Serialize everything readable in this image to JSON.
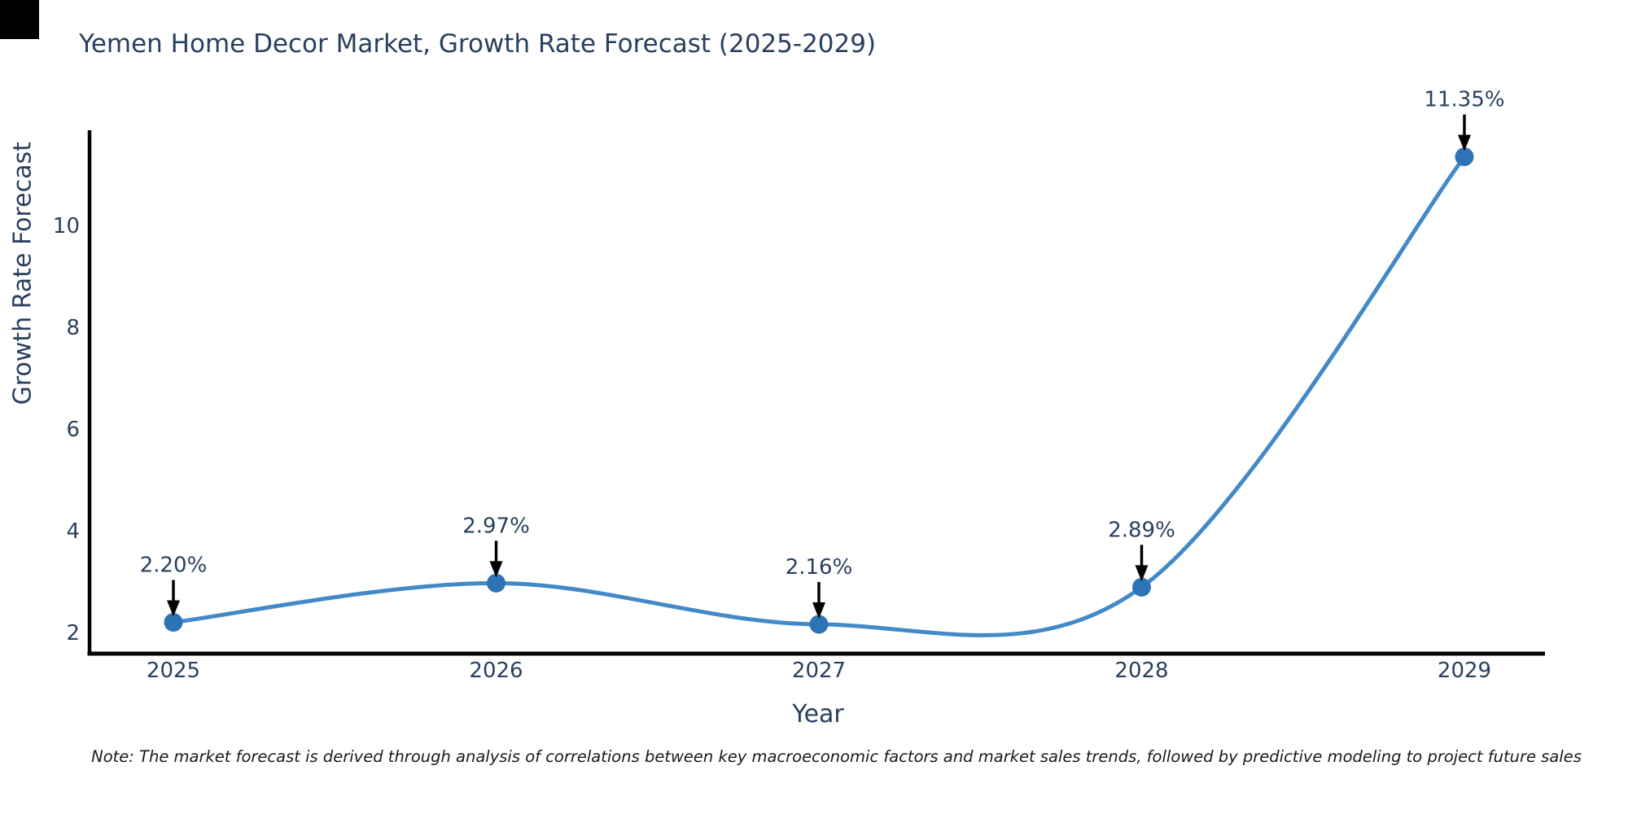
{
  "title": "Yemen Home Decor Market, Growth Rate Forecast (2025-2029)",
  "note": "Note: The market forecast is derived through analysis of correlations between key macroeconomic factors and market sales trends, followed by predictive modeling to project future sales",
  "chart_data": {
    "type": "line",
    "title": "Yemen Home Decor Market, Growth Rate Forecast (2025-2029)",
    "xlabel": "Year",
    "ylabel": "Growth Rate Forecast",
    "categories": [
      "2025",
      "2026",
      "2027",
      "2028",
      "2029"
    ],
    "values": [
      2.2,
      2.97,
      2.16,
      2.89,
      11.35
    ],
    "point_labels": [
      "2.20%",
      "2.97%",
      "2.16%",
      "2.89%",
      "11.35%"
    ],
    "yticks": [
      2,
      4,
      6,
      8,
      10
    ],
    "ylim": [
      1.6,
      12.1
    ],
    "line_shape": "spline",
    "grid": false,
    "legend": "none",
    "colors": {
      "line": "#4389c8",
      "marker": "#2e73b5",
      "axis": "#000000",
      "text": "#2a3f5f",
      "annotation_arrow": "#000000",
      "background": "#ffffff"
    }
  }
}
